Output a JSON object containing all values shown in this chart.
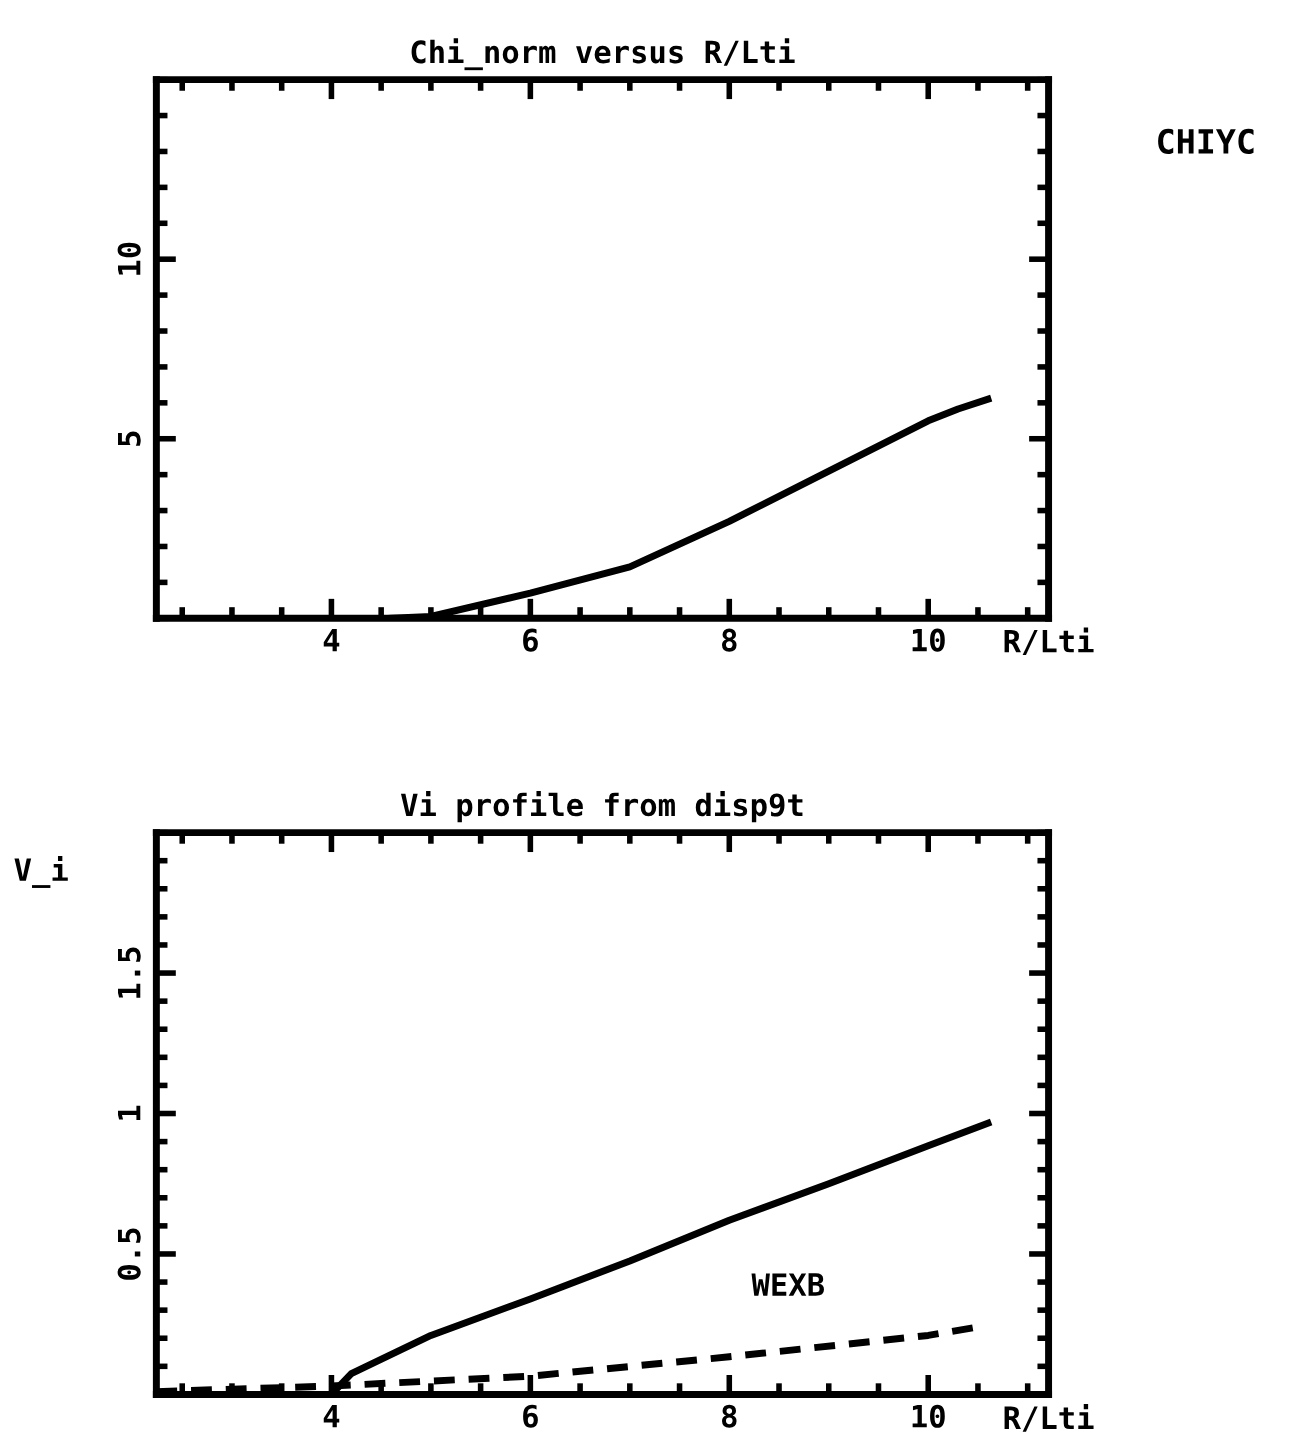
{
  "chart_data": [
    {
      "type": "line",
      "title": "Chi_norm versus R/Lti",
      "xlabel": "R/Lti",
      "annotations": [
        "CHIYC"
      ],
      "xlim": [
        2.24,
        11.21
      ],
      "ylim": [
        0,
        15
      ],
      "xticks": [
        4,
        6,
        8,
        10
      ],
      "yticks": [
        5,
        10
      ],
      "line_style": "solid",
      "series": [
        {
          "color": "#000000",
          "x": [
            4.6,
            5,
            6,
            7,
            8,
            9,
            10,
            10.3,
            10.6
          ],
          "values": [
            0,
            0.05,
            0.7,
            1.43,
            2.7,
            4.1,
            5.5,
            5.83,
            6.1
          ]
        }
      ]
    },
    {
      "type": "line",
      "title": "Vi profile from disp9t",
      "xlabel": "R/Lti",
      "ylabel": "V_i",
      "xlim": [
        2.24,
        11.21
      ],
      "ylim": [
        0,
        2
      ],
      "xticks": [
        4,
        6,
        8,
        10
      ],
      "yticks": [
        0.5,
        1,
        1.5
      ],
      "series": [
        {
          "color": "#000000",
          "line_style": "solid",
          "x": [
            4,
            4.2,
            5,
            6,
            7,
            8,
            9,
            10,
            10.6
          ],
          "values": [
            0,
            0.074,
            0.21,
            0.34,
            0.475,
            0.62,
            0.75,
            0.885,
            0.965
          ]
        },
        {
          "name": "WEXB",
          "color": "#000000",
          "line_style": "dashed",
          "x": [
            2.24,
            4,
            6,
            8,
            10,
            10.5
          ],
          "values": [
            0.01,
            0.03,
            0.065,
            0.134,
            0.21,
            0.24
          ]
        }
      ]
    }
  ]
}
